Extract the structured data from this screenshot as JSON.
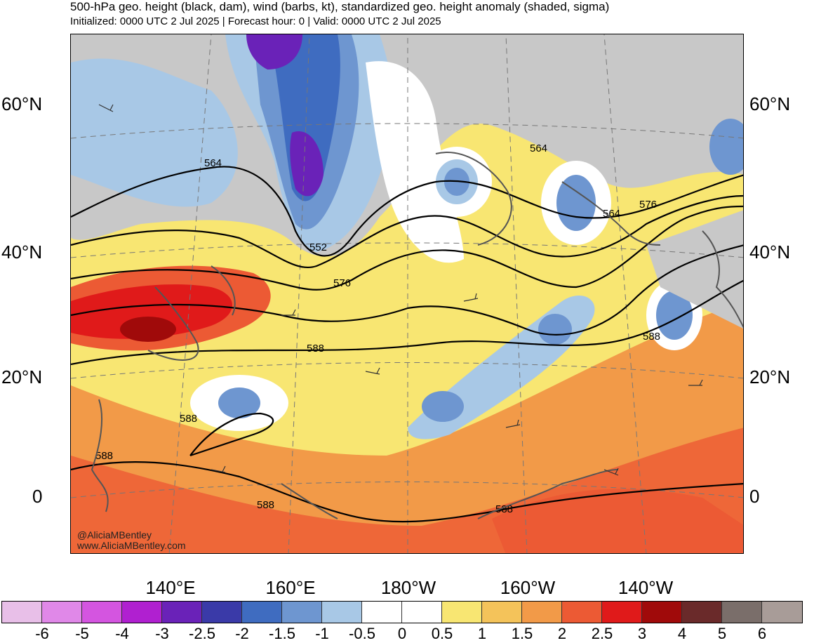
{
  "header": {
    "title": "500-hPa geo. height (black, dam), wind (barbs, kt), standardized geo. height anomaly (shaded, sigma)",
    "subtitle": "Initialized: 0000 UTC 2 Jul 2025 | Forecast hour: 0 | Valid: 0000 UTC 2 Jul 2025"
  },
  "axes": {
    "lat_labels": [
      "60°N",
      "40°N",
      "20°N",
      "0"
    ],
    "lon_labels": [
      "140°E",
      "160°E",
      "180°W",
      "160°W",
      "140°W"
    ]
  },
  "contour_labels": [
    "564",
    "552",
    "576",
    "588",
    "588",
    "588",
    "588",
    "588",
    "564",
    "564",
    "576",
    "588"
  ],
  "credit": {
    "handle": "@AliciaMBentley",
    "site": "www.AliciaMBentley.com"
  },
  "colorbar": {
    "ticks": [
      "-6",
      "-5",
      "-4",
      "-3",
      "-2.5",
      "-2",
      "-1.5",
      "-1",
      "-0.5",
      "0",
      "0.5",
      "1",
      "1.5",
      "2",
      "2.5",
      "3",
      "4",
      "5",
      "6"
    ],
    "colors": [
      "#e8bfe8",
      "#e088e8",
      "#d455e0",
      "#b020d0",
      "#6a22b8",
      "#3a3aa8",
      "#3f6cc0",
      "#6e96d0",
      "#a8c8e6",
      "#ffffff",
      "#ffffff",
      "#f8e672",
      "#f4c35a",
      "#f29a48",
      "#ec5a34",
      "#e01a1a",
      "#a00a0a",
      "#6a2a2a",
      "#7a6e6a",
      "#a89c98"
    ]
  },
  "palette": {
    "neg_light": "#a8c8e6",
    "neg_mid": "#6e96d0",
    "neg_strong": "#3f6cc0",
    "neg_deep": "#3a3aa8",
    "neg_purple": "#6a22b8",
    "pos_light": "#f8e672",
    "pos_mid": "#f4c35a",
    "pos_orange": "#f29a48",
    "pos_red": "#ec5a34",
    "pos_deep": "#e01a1a",
    "pos_dark": "#a00a0a",
    "land_gray": "#c8c8c8"
  }
}
